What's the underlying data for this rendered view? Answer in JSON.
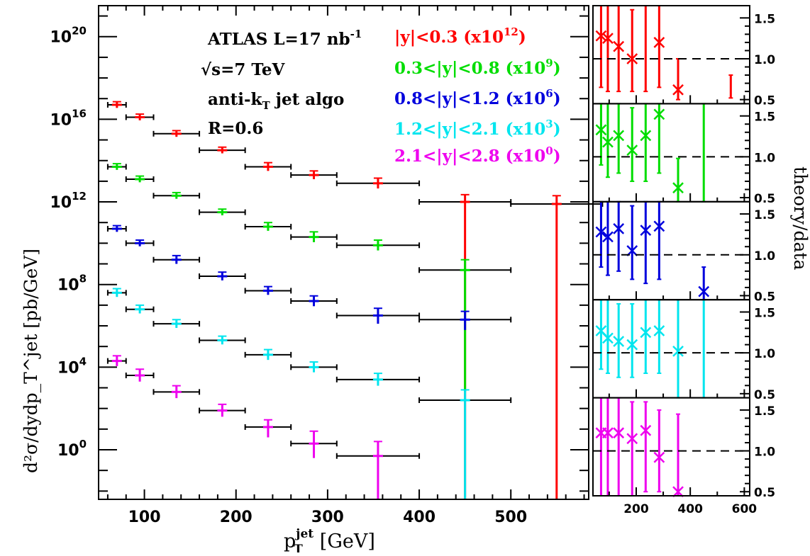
{
  "chart_data": [
    {
      "type": "scatter",
      "panel": "main",
      "xlabel": "p_T^jet [GeV]",
      "xlabel_main": "p",
      "xlabel_sup": "jet",
      "xlabel_sub": "T",
      "xlabel_unit": "[GeV]",
      "ylabel": "d²σ/dydp_T^jet [pb/GeV]",
      "xlim": [
        50,
        585
      ],
      "y_scale": "log10",
      "ylim_exp": [
        -2.4,
        21.5
      ],
      "x_ticks": [
        100,
        200,
        300,
        400,
        500
      ],
      "y_tick_exps": [
        0,
        4,
        8,
        12,
        16,
        20
      ],
      "annotations": [
        "ATLAS L=17 nb",
        "√s=7 TeV",
        "anti-k",
        "R=0.6"
      ],
      "annotation_parts": {
        "atlas": "ATLAS L=17 nb",
        "atlas_sup": "-1",
        "sqrts": "√s=7 TeV",
        "antikt": "anti-k",
        "antikt_sub": "T",
        "antikt_tail": " jet algo",
        "radius": "R=0.6"
      },
      "bins": [
        [
          60,
          80
        ],
        [
          80,
          110
        ],
        [
          110,
          160
        ],
        [
          160,
          210
        ],
        [
          210,
          260
        ],
        [
          260,
          310
        ],
        [
          310,
          400
        ],
        [
          400,
          500
        ],
        [
          500,
          600
        ]
      ],
      "series": [
        {
          "name": "|y|<0.3 (x10^12)",
          "legend_main": "|y|<0.3 (x10",
          "legend_exp": "12",
          "color": "#ff0000",
          "log10_values": [
            16.7,
            16.1,
            15.3,
            14.5,
            13.7,
            13.3,
            12.9,
            12.0,
            11.9
          ],
          "log10_err_up": [
            0.15,
            0.15,
            0.15,
            0.15,
            0.2,
            0.2,
            0.25,
            0.35,
            0.4
          ],
          "log10_err_down": [
            0.15,
            0.15,
            0.15,
            0.15,
            0.2,
            0.2,
            0.25,
            14.5,
            14.5
          ]
        },
        {
          "name": "0.3<|y|<0.8 (x10^9)",
          "legend_main": "0.3<|y|<0.8 (x10",
          "legend_exp": "9",
          "color": "#00dd00",
          "log10_values": [
            13.7,
            13.1,
            12.3,
            11.5,
            10.8,
            10.3,
            9.9,
            8.7
          ],
          "log10_err_up": [
            0.15,
            0.15,
            0.15,
            0.15,
            0.2,
            0.25,
            0.25,
            0.5
          ],
          "log10_err_down": [
            0.15,
            0.15,
            0.15,
            0.15,
            0.2,
            0.25,
            0.25,
            5.9
          ]
        },
        {
          "name": "0.8<|y|<1.2 (x10^6)",
          "legend_main": "0.8<|y|<1.2 (x10",
          "legend_exp": "6",
          "color": "#0000dd",
          "log10_values": [
            10.7,
            10.0,
            9.2,
            8.4,
            7.7,
            7.2,
            6.5,
            6.3
          ],
          "log10_err_up": [
            0.15,
            0.15,
            0.2,
            0.2,
            0.2,
            0.25,
            0.35,
            0.4
          ],
          "log10_err_down": [
            0.15,
            0.15,
            0.2,
            0.2,
            0.2,
            0.25,
            0.4,
            0.5
          ]
        },
        {
          "name": "1.2<|y|<2.1 (x10^3)",
          "legend_main": "1.2<|y|<2.1 (x10",
          "legend_exp": "3",
          "color": "#00e5ee",
          "log10_values": [
            7.6,
            6.8,
            6.1,
            5.3,
            4.6,
            4.0,
            3.4,
            2.4
          ],
          "log10_err_up": [
            0.2,
            0.2,
            0.2,
            0.2,
            0.25,
            0.25,
            0.3,
            0.5
          ],
          "log10_err_down": [
            0.2,
            0.2,
            0.2,
            0.2,
            0.25,
            0.25,
            0.3,
            5.0
          ]
        },
        {
          "name": "2.1<|y|<2.8 (x10^0)",
          "legend_main": "2.1<|y|<2.8 (x10",
          "legend_exp": "0",
          "color": "#ee00ee",
          "log10_values": [
            4.3,
            3.6,
            2.8,
            1.9,
            1.1,
            0.3,
            -0.3
          ],
          "log10_err_up": [
            0.25,
            0.3,
            0.3,
            0.3,
            0.35,
            0.6,
            0.7
          ],
          "log10_err_down": [
            0.25,
            0.3,
            0.3,
            0.3,
            0.5,
            0.7,
            2.2
          ]
        }
      ]
    },
    {
      "type": "scatter",
      "panel": "ratio",
      "ylabel": "theory/data",
      "xlim": [
        40,
        620
      ],
      "ylim": [
        0.45,
        1.65
      ],
      "x_ticks": [
        200,
        400,
        600
      ],
      "y_ticks": [
        0.5,
        1.0,
        1.5
      ],
      "reference_line": 1.0,
      "series": [
        {
          "name": "|y|<0.3",
          "color": "#ff0000",
          "x": [
            70,
            95,
            135,
            185,
            235,
            285,
            355,
            550
          ],
          "values": [
            1.28,
            1.25,
            1.15,
            1.0,
            null,
            1.2,
            0.62,
            null
          ],
          "err_low": [
            0.65,
            0.6,
            0.6,
            0.6,
            0.6,
            0.65,
            0.5,
            0.52
          ],
          "err_high": [
            1.65,
            1.65,
            1.65,
            1.6,
            1.65,
            1.65,
            1.0,
            0.8
          ]
        },
        {
          "name": "0.3<|y|<0.8",
          "color": "#00dd00",
          "x": [
            70,
            95,
            135,
            185,
            235,
            285,
            355,
            450
          ],
          "values": [
            1.33,
            1.18,
            1.26,
            1.08,
            1.26,
            1.52,
            0.62,
            null
          ],
          "err_low": [
            0.9,
            0.75,
            0.8,
            0.7,
            0.7,
            0.8,
            0.45,
            0.45
          ],
          "err_high": [
            1.65,
            1.65,
            1.65,
            1.6,
            1.65,
            1.65,
            0.98,
            1.65
          ]
        },
        {
          "name": "0.8<|y|<1.2",
          "color": "#0000dd",
          "x": [
            70,
            95,
            135,
            185,
            235,
            285,
            450
          ],
          "values": [
            1.28,
            1.22,
            1.32,
            1.05,
            1.3,
            1.35,
            0.55
          ],
          "err_low": [
            0.85,
            0.75,
            0.8,
            0.7,
            0.65,
            0.7,
            0.45
          ],
          "err_high": [
            1.65,
            1.65,
            1.65,
            1.6,
            1.65,
            1.65,
            0.85
          ]
        },
        {
          "name": "1.2<|y|<2.1",
          "color": "#00e5ee",
          "x": [
            70,
            95,
            135,
            185,
            235,
            285,
            355,
            450
          ],
          "values": [
            1.27,
            1.18,
            1.14,
            1.1,
            1.25,
            1.27,
            1.02,
            null
          ],
          "err_low": [
            0.8,
            0.75,
            0.7,
            0.7,
            0.75,
            0.75,
            0.45,
            0.45
          ],
          "err_high": [
            1.65,
            1.65,
            1.6,
            1.6,
            1.65,
            1.65,
            1.65,
            1.65
          ]
        },
        {
          "name": "2.1<|y|<2.8",
          "color": "#ee00ee",
          "x": [
            70,
            95,
            135,
            185,
            235,
            285,
            355
          ],
          "values": [
            1.22,
            1.22,
            1.22,
            1.15,
            1.25,
            0.92,
            0.5
          ],
          "err_low": [
            0.45,
            0.45,
            0.45,
            0.45,
            0.5,
            0.5,
            0.45
          ],
          "err_high": [
            1.65,
            1.65,
            1.65,
            1.6,
            1.6,
            1.5,
            1.45
          ]
        }
      ]
    }
  ]
}
